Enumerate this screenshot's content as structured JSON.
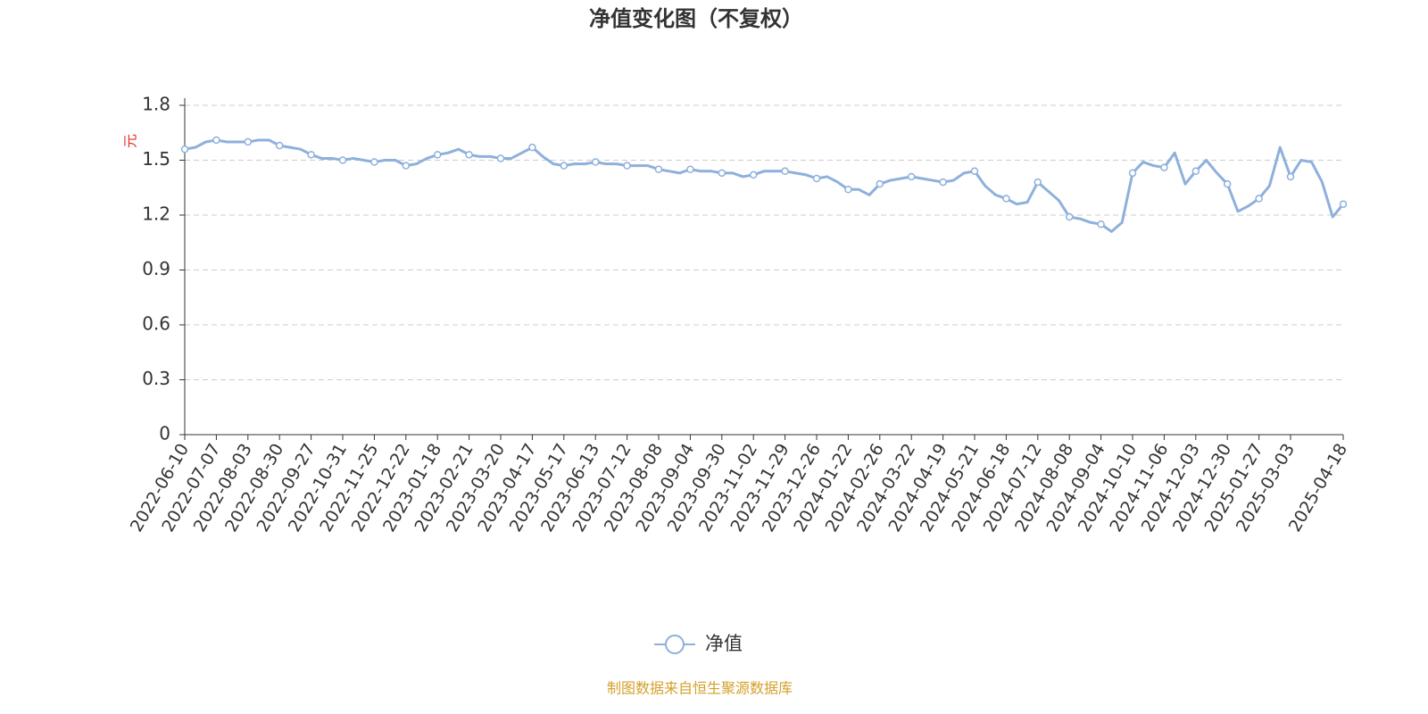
{
  "chart_data": {
    "type": "line",
    "title": "净值变化图（不复权）",
    "y_label": "元",
    "source": "制图数据来自恒生聚源数据库",
    "categories": [
      "2022-06-10",
      null,
      null,
      "2022-07-07",
      null,
      null,
      "2022-08-03",
      null,
      null,
      "2022-08-30",
      null,
      null,
      "2022-09-27",
      null,
      null,
      "2022-10-31",
      null,
      null,
      "2022-11-25",
      null,
      null,
      "2022-12-22",
      null,
      null,
      "2023-01-18",
      null,
      null,
      "2023-02-21",
      null,
      null,
      "2023-03-20",
      null,
      null,
      "2023-04-17",
      null,
      null,
      "2023-05-17",
      null,
      null,
      "2023-06-13",
      null,
      null,
      "2023-07-12",
      null,
      null,
      "2023-08-08",
      null,
      null,
      "2023-09-04",
      null,
      null,
      "2023-09-30",
      null,
      null,
      "2023-11-02",
      null,
      null,
      "2023-11-29",
      null,
      null,
      "2023-12-26",
      null,
      null,
      "2024-01-22",
      null,
      null,
      "2024-02-26",
      null,
      null,
      "2024-03-22",
      null,
      null,
      "2024-04-19",
      null,
      null,
      "2024-05-21",
      null,
      null,
      "2024-06-18",
      null,
      null,
      "2024-07-12",
      null,
      null,
      "2024-08-08",
      null,
      null,
      "2024-09-04",
      null,
      null,
      "2024-10-10",
      null,
      null,
      "2024-11-06",
      null,
      null,
      "2024-12-03",
      null,
      null,
      "2024-12-30",
      null,
      null,
      "2025-01-27",
      null,
      null,
      "2025-03-03",
      null,
      null,
      null,
      null,
      "2025-04-18"
    ],
    "series": [
      {
        "name": "净值",
        "color": "#8eb0dc",
        "values": [
          1.56,
          1.57,
          1.6,
          1.61,
          1.6,
          1.6,
          1.6,
          1.61,
          1.61,
          1.58,
          1.57,
          1.56,
          1.53,
          1.51,
          1.51,
          1.5,
          1.51,
          1.5,
          1.49,
          1.5,
          1.5,
          1.47,
          1.48,
          1.51,
          1.53,
          1.54,
          1.56,
          1.53,
          1.52,
          1.52,
          1.51,
          1.51,
          1.54,
          1.57,
          1.52,
          1.48,
          1.47,
          1.48,
          1.48,
          1.49,
          1.48,
          1.48,
          1.47,
          1.47,
          1.47,
          1.45,
          1.44,
          1.43,
          1.45,
          1.44,
          1.44,
          1.43,
          1.43,
          1.41,
          1.42,
          1.44,
          1.44,
          1.44,
          1.43,
          1.42,
          1.4,
          1.41,
          1.38,
          1.34,
          1.34,
          1.31,
          1.37,
          1.39,
          1.4,
          1.41,
          1.4,
          1.39,
          1.38,
          1.39,
          1.43,
          1.44,
          1.36,
          1.31,
          1.29,
          1.26,
          1.27,
          1.38,
          1.33,
          1.28,
          1.19,
          1.18,
          1.16,
          1.15,
          1.11,
          1.16,
          1.43,
          1.49,
          1.47,
          1.46,
          1.54,
          1.37,
          1.44,
          1.5,
          1.43,
          1.37,
          1.22,
          1.25,
          1.29,
          1.36,
          1.57,
          1.41,
          1.5,
          1.49,
          1.38,
          1.19,
          1.26
        ]
      }
    ],
    "ylim": [
      0,
      1.8
    ],
    "yticks": [
      0,
      0.3,
      0.6,
      0.9,
      1.2,
      1.5,
      1.8
    ],
    "grid": true
  }
}
